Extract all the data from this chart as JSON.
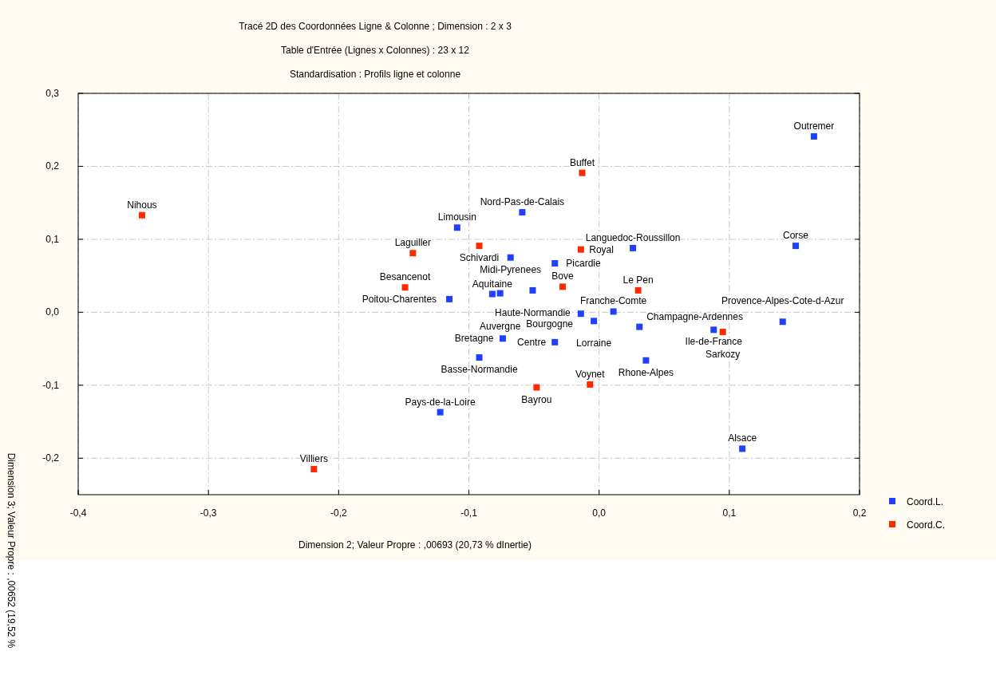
{
  "chart_data": {
    "type": "scatter",
    "title": "Tracé 2D des Coordonnées Ligne & Colonne ; Dimension : 2 x 3",
    "subtitle": "Table d'Entrée (Lignes x Colonnes) : 23 x 12\nStandardisation : Profils ligne et colonne",
    "xlabel": "Dimension 2; Valeur Propre : ,00693 (20,73 % dInertie)",
    "ylabel": "Dimension 3; Valeur Propre : ,00652 (19,52 %",
    "xlim": [
      -0.4,
      0.2
    ],
    "ylim": [
      -0.25,
      0.3
    ],
    "xticks": [
      {
        "value": -0.4,
        "label": "-0,4"
      },
      {
        "value": -0.3,
        "label": "-0,3"
      },
      {
        "value": -0.2,
        "label": "-0,2"
      },
      {
        "value": -0.1,
        "label": "-0,1"
      },
      {
        "value": 0,
        "label": "0,0"
      },
      {
        "value": 0.1,
        "label": "0,1"
      },
      {
        "value": 0.2,
        "label": "0,2"
      }
    ],
    "yticks": [
      {
        "value": -0.2,
        "label": "-0,2"
      },
      {
        "value": -0.1,
        "label": "-0,1"
      },
      {
        "value": 0,
        "label": "0,0"
      },
      {
        "value": 0.1,
        "label": "0,1"
      },
      {
        "value": 0.2,
        "label": "0,2"
      },
      {
        "value": 0.3,
        "label": "0,3"
      }
    ],
    "grid": true,
    "legend": "right",
    "marker": "square",
    "series": [
      {
        "name": "Coord.L.",
        "color": "#2040ff",
        "x": [
          0.165,
          -0.059,
          -0.109,
          -0.068,
          0.026,
          0.151,
          -0.034,
          -0.051,
          -0.082,
          -0.076,
          -0.115,
          0.011,
          -0.014,
          -0.004,
          0.031,
          0.088,
          0.141,
          -0.074,
          -0.034,
          -0.092,
          0.036,
          -0.122,
          0.11
        ],
        "values": [
          0.241,
          0.137,
          0.116,
          0.075,
          0.088,
          0.091,
          0.067,
          0.03,
          0.025,
          0.026,
          0.018,
          0.001,
          -0.002,
          -0.012,
          -0.02,
          -0.024,
          -0.013,
          -0.036,
          -0.041,
          -0.062,
          -0.066,
          -0.137,
          -0.187
        ]
      },
      {
        "name": "Coord.C.",
        "color": "#ff2a00",
        "x": [
          -0.013,
          -0.351,
          -0.092,
          -0.143,
          -0.014,
          -0.149,
          -0.028,
          0.03,
          0.095,
          -0.048,
          -0.007,
          -0.219
        ],
        "values": [
          0.191,
          0.133,
          0.091,
          0.081,
          0.086,
          0.034,
          0.035,
          0.03,
          -0.027,
          -0.103,
          -0.099,
          -0.215
        ]
      }
    ],
    "annotations": [
      {
        "text": "Outremer",
        "x": 0.165,
        "y": 0.241
      },
      {
        "text": "Nord-Pas-de-Calais",
        "x": -0.059,
        "y": 0.137
      },
      {
        "text": "Limousin",
        "x": -0.109,
        "y": 0.116
      },
      {
        "text": "Midi-Pyrenees",
        "x": -0.068,
        "y": 0.075
      },
      {
        "text": "Languedoc-Roussillon",
        "x": 0.026,
        "y": 0.088
      },
      {
        "text": "Corse",
        "x": 0.151,
        "y": 0.091
      },
      {
        "text": "Picardie",
        "x": -0.034,
        "y": 0.067
      },
      {
        "text": "Haute-Normandie",
        "x": -0.051,
        "y": 0.03
      },
      {
        "text": "Aquitaine",
        "x": -0.082,
        "y": 0.025
      },
      {
        "text": "Auvergne",
        "x": -0.076,
        "y": 0.026
      },
      {
        "text": "Poitou-Charentes",
        "x": -0.115,
        "y": 0.018
      },
      {
        "text": "Franche-Comte",
        "x": 0.011,
        "y": 0.001
      },
      {
        "text": "Bourgogne",
        "x": -0.014,
        "y": -0.002
      },
      {
        "text": "Lorraine",
        "x": -0.004,
        "y": -0.012
      },
      {
        "text": "Champagne-Ardennes",
        "x": 0.031,
        "y": -0.02
      },
      {
        "text": "Ile-de-France",
        "x": 0.088,
        "y": -0.024
      },
      {
        "text": "Provence-Alpes-Cote-d-Azur",
        "x": 0.141,
        "y": -0.013
      },
      {
        "text": "Bretagne",
        "x": -0.074,
        "y": -0.036
      },
      {
        "text": "Centre",
        "x": -0.034,
        "y": -0.041
      },
      {
        "text": "Basse-Normandie",
        "x": -0.092,
        "y": -0.062
      },
      {
        "text": "Rhone-Alpes",
        "x": 0.036,
        "y": -0.066
      },
      {
        "text": "Pays-de-la-Loire",
        "x": -0.122,
        "y": -0.137
      },
      {
        "text": "Alsace",
        "x": 0.11,
        "y": -0.187
      },
      {
        "text": "Buffet",
        "x": -0.013,
        "y": 0.191
      },
      {
        "text": "Nihous",
        "x": -0.351,
        "y": 0.133
      },
      {
        "text": "Schivardi",
        "x": -0.092,
        "y": 0.091
      },
      {
        "text": "Laguiller",
        "x": -0.143,
        "y": 0.081
      },
      {
        "text": "Royal",
        "x": -0.014,
        "y": 0.086
      },
      {
        "text": "Besancenot",
        "x": -0.149,
        "y": 0.034
      },
      {
        "text": "Bove",
        "x": -0.028,
        "y": 0.035
      },
      {
        "text": "Le Pen",
        "x": 0.03,
        "y": 0.03
      },
      {
        "text": "Sarkozy",
        "x": 0.095,
        "y": -0.027
      },
      {
        "text": "Bayrou",
        "x": -0.048,
        "y": -0.103
      },
      {
        "text": "Voynet",
        "x": -0.007,
        "y": -0.099
      },
      {
        "text": "Villiers",
        "x": -0.219,
        "y": -0.215
      }
    ]
  }
}
